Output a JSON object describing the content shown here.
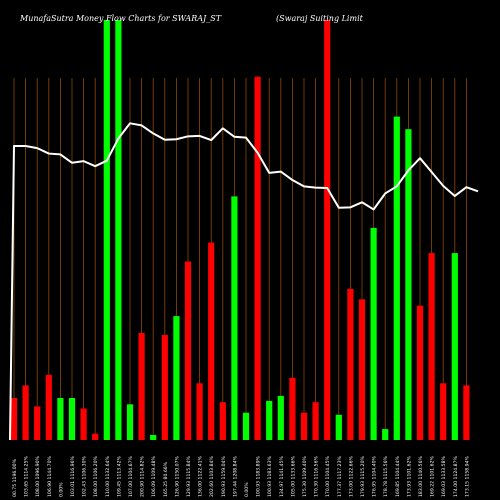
{
  "header": {
    "left_text": "MunafaSutra  Money Flow Charts for SWARAJ_ST",
    "right_text": "(Swaraj Suiting Limit"
  },
  "colors": {
    "background": "#000000",
    "up": "#00ff00",
    "down": "#ff0000",
    "grid": "#8b4a00",
    "line": "#ffffff"
  },
  "chart_data": {
    "type": "bar",
    "overlay": "line",
    "grid": "vertical",
    "bar_ylim": [
      0,
      100
    ],
    "line_ylim": [
      0,
      100
    ],
    "bars": [
      {
        "label": "00.75 1196.00%",
        "value": 10,
        "dir": "down"
      },
      {
        "label": "103.65 1114.25%",
        "value": 13,
        "dir": "down"
      },
      {
        "label": "108.00 1096.90%",
        "value": 8,
        "dir": "down"
      },
      {
        "label": "106.90 1144.70%",
        "value": 15.5,
        "dir": "down"
      },
      {
        "label": "0.00%",
        "value": 10,
        "dir": "up"
      },
      {
        "label": "103.01 1116.96%",
        "value": 10,
        "dir": "up"
      },
      {
        "label": "102.43 1106.30%",
        "value": 7.5,
        "dir": "down"
      },
      {
        "label": "108.00 1106.20%",
        "value": 1.5,
        "dir": "down"
      },
      {
        "label": "110.00 1132.64%",
        "value": 100,
        "dir": "up"
      },
      {
        "label": "109.45 1113.42%",
        "value": 100,
        "dir": "up"
      },
      {
        "label": "107.00 1104.67%",
        "value": 8.5,
        "dir": "up"
      },
      {
        "label": "200.90 1114.82%",
        "value": 25.5,
        "dir": "down"
      },
      {
        "label": "106.09 1109.48%",
        "value": 1.2,
        "dir": "up"
      },
      {
        "label": "165.25 80.66%",
        "value": 25,
        "dir": "down"
      },
      {
        "label": "126.90 1150.07%",
        "value": 29.5,
        "dir": "up"
      },
      {
        "label": "129.93 1115.84%",
        "value": 42.5,
        "dir": "down"
      },
      {
        "label": "136.00 1122.41%",
        "value": 13.5,
        "dir": "down"
      },
      {
        "label": "202.60 1103.84%",
        "value": 47,
        "dir": "down"
      },
      {
        "label": "190.93 1159.04%",
        "value": 9,
        "dir": "down"
      },
      {
        "label": "197.44 1208.84%",
        "value": 58,
        "dir": "up"
      },
      {
        "label": "0.00%",
        "value": 6.5,
        "dir": "up"
      },
      {
        "label": "100.93 1183.89%",
        "value": 86.5,
        "dir": "down"
      },
      {
        "label": "100.93 1183.63%",
        "value": 9.3,
        "dir": "up"
      },
      {
        "label": "134.97 1141.45%",
        "value": 10.5,
        "dir": "up"
      },
      {
        "label": "105.00 1133.66%",
        "value": 14.8,
        "dir": "down"
      },
      {
        "label": "175.30 1109.40%",
        "value": 6.5,
        "dir": "down"
      },
      {
        "label": "170.30 1116.56%",
        "value": 9,
        "dir": "down"
      },
      {
        "label": "170.00 1104.45%",
        "value": 100,
        "dir": "down"
      },
      {
        "label": "177.37 1117.23%",
        "value": 6,
        "dir": "up"
      },
      {
        "label": "173.00 1122.66%",
        "value": 36,
        "dir": "down"
      },
      {
        "label": "179.93 1115.20%",
        "value": 33.5,
        "dir": "down"
      },
      {
        "label": "176.95 1104.40%",
        "value": 50.5,
        "dir": "up"
      },
      {
        "label": "178.78 1115.56%",
        "value": 2.6,
        "dir": "up"
      },
      {
        "label": "169.85 1104.44%",
        "value": 77,
        "dir": "up"
      },
      {
        "label": "173.93 1101.62%",
        "value": 74,
        "dir": "up"
      },
      {
        "label": "183.00 1140.56%",
        "value": 32,
        "dir": "down"
      },
      {
        "label": "169.22 1101.62%",
        "value": 44.5,
        "dir": "down"
      },
      {
        "label": "169.03 1133.58%",
        "value": 13.5,
        "dir": "down"
      },
      {
        "label": "174.00 1124.87%",
        "value": 44.5,
        "dir": "up"
      },
      {
        "label": "173.15 1158.94%",
        "value": 13,
        "dir": "down"
      }
    ],
    "line": [
      70,
      70,
      69.5,
      68.2,
      68,
      66,
      66.4,
      65.2,
      66.5,
      71.8,
      75.4,
      74.9,
      73,
      71.5,
      71.6,
      72.3,
      72.4,
      71.4,
      74.2,
      72.2,
      72,
      68.4,
      63.6,
      63.9,
      61.9,
      60.4,
      60.1,
      60,
      55.3,
      55.4,
      56.6,
      54.9,
      58.7,
      60.4,
      64.2,
      67.1,
      63.8,
      60.5,
      58.1,
      60.2,
      59.2
    ]
  }
}
